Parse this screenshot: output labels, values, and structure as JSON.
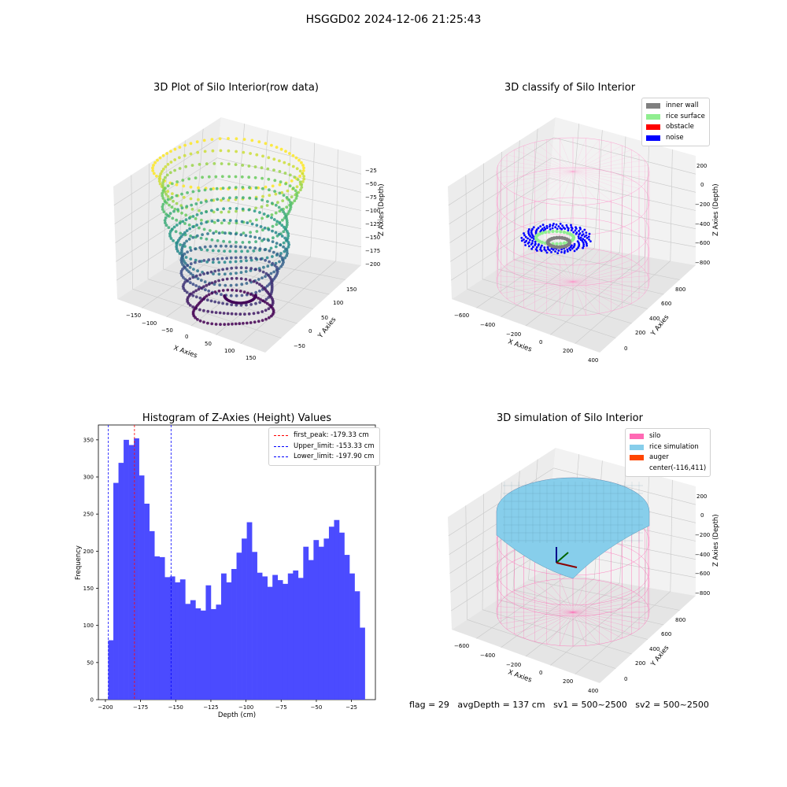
{
  "suptitle": "HSGGD02 2024-12-06 21:25:43",
  "footer": {
    "flag": "flag = 29",
    "avg_depth": "avgDepth = 137 cm",
    "sv1": "sv1 = 500~2500",
    "sv2": "sv2 = 500~2500"
  },
  "colors": {
    "histogram_bar": "#4b4bff",
    "first_peak_line": "#ff0000",
    "limit_lines": "#0000ff",
    "silo": "#ff69b4",
    "rice_simulation": "#87ceeb",
    "auger": "#ff4500",
    "inner_wall": "#808080",
    "rice_surface": "#90ee90",
    "obstacle": "#ff0000",
    "noise": "#0000ff"
  },
  "panels": {
    "raw": {
      "title": "3D Plot of Silo Interior(row data)",
      "xlabel": "X Axies",
      "ylabel": "Y Axies",
      "zlabel": "Z Axies (Depth)",
      "xticks": [
        "−150",
        "−100",
        "−50",
        "0",
        "50",
        "100",
        "150"
      ],
      "yticks": [
        "−50",
        "0",
        "50",
        "100",
        "150"
      ],
      "zticks": [
        "−25",
        "−50",
        "−75",
        "−100",
        "−125",
        "−150",
        "−175",
        "−200"
      ]
    },
    "classify": {
      "title": "3D classify of Silo Interior",
      "xlabel": "X Axies",
      "ylabel": "Y Axies",
      "zlabel": "Z Axies (Depth)",
      "xticks": [
        "−600",
        "−400",
        "−200",
        "0",
        "200",
        "400"
      ],
      "yticks": [
        "0",
        "200",
        "400",
        "600",
        "800"
      ],
      "zticks": [
        "200",
        "0",
        "−200",
        "−400",
        "−600",
        "−800"
      ],
      "legend": [
        "inner wall",
        "rice surface",
        "obstacle",
        "noise"
      ]
    },
    "hist": {
      "title": "Histogram of Z-Axies (Height) Values",
      "xlabel": "Depth (cm)",
      "ylabel": "Frequency",
      "xticks": [
        "−200",
        "−175",
        "−150",
        "−125",
        "−100",
        "−75",
        "−50",
        "−25"
      ],
      "yticks": [
        "0",
        "50",
        "100",
        "150",
        "200",
        "250",
        "300",
        "350"
      ],
      "legend": [
        "first_peak: -179.33 cm",
        "Upper_limit: -153.33 cm",
        "Lower_limit: -197.90 cm"
      ]
    },
    "sim": {
      "title": "3D simulation of Silo Interior",
      "xlabel": "X Axies",
      "ylabel": "Y Axies",
      "zlabel": "Z Axies (Depth)",
      "xticks": [
        "−600",
        "−400",
        "−200",
        "0",
        "200",
        "400"
      ],
      "yticks": [
        "0",
        "200",
        "400",
        "600",
        "800"
      ],
      "zticks": [
        "200",
        "0",
        "−200",
        "−400",
        "−600",
        "−800"
      ],
      "legend": [
        "silo",
        "rice simulation",
        "auger",
        "center(-116,411)"
      ]
    }
  },
  "chart_data": {
    "type": "bar",
    "title": "Histogram of Z-Axies (Height) Values",
    "xlabel": "Depth (cm)",
    "ylabel": "Frequency",
    "xlim": [
      -205,
      -8
    ],
    "ylim": [
      0,
      370
    ],
    "bin_start": -198,
    "bin_width": 3.65,
    "values": [
      80,
      292,
      319,
      350,
      343,
      352,
      302,
      264,
      227,
      193,
      192,
      165,
      166,
      158,
      162,
      129,
      134,
      123,
      120,
      154,
      122,
      128,
      170,
      158,
      176,
      198,
      217,
      239,
      199,
      171,
      166,
      152,
      168,
      161,
      156,
      170,
      174,
      164,
      206,
      188,
      215,
      206,
      217,
      233,
      242,
      225,
      195,
      170,
      146,
      97
    ],
    "vlines": [
      {
        "name": "first_peak",
        "value": -179.33
      },
      {
        "name": "Upper_limit",
        "value": -153.33
      },
      {
        "name": "Lower_limit",
        "value": -197.9
      }
    ]
  }
}
